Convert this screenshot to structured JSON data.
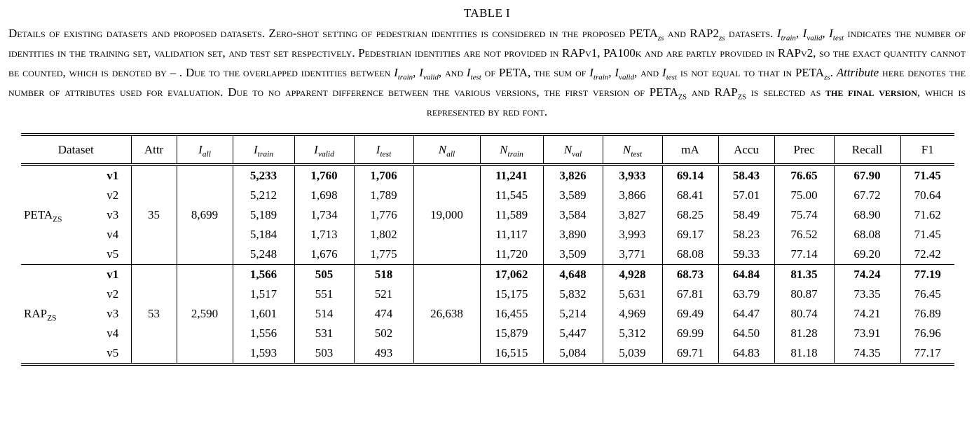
{
  "title": "TABLE I",
  "colors": {
    "text": "#000000",
    "background": "#ffffff",
    "rule": "#000000",
    "final_version_font": "#000000"
  },
  "caption": {
    "segments": [
      {
        "s": "sc",
        "t": "Details of existing datasets and proposed datasets. Zero-shot setting of pedestrian identities is considered in the proposed PETA",
        "sub": "zs",
        "ss": "subi"
      },
      {
        "s": "sc",
        "t": " and RAP2",
        "sub": "zs",
        "ss": "subi"
      },
      {
        "s": "sc",
        "t": " datasets. "
      },
      {
        "s": "mi",
        "t": "I",
        "sub": "train",
        "ss": "subi"
      },
      {
        "s": "sc",
        "t": ", "
      },
      {
        "s": "mi",
        "t": "I",
        "sub": "valid",
        "ss": "subi"
      },
      {
        "s": "sc",
        "t": ", "
      },
      {
        "s": "mi",
        "t": "I",
        "sub": "test",
        "ss": "subi"
      },
      {
        "s": "sc",
        "t": " indicates the number of identities in the training set, validation set, and test set respectively. Pedestrian identities are not provided in RAPv1, PA100k and are partly provided in RAPv2, so the exact quantity cannot be counted, which is denoted by – . Due to the overlapped identities between "
      },
      {
        "s": "mi",
        "t": "I",
        "sub": "train",
        "ss": "subi"
      },
      {
        "s": "sc",
        "t": ", "
      },
      {
        "s": "mi",
        "t": "I",
        "sub": "valid",
        "ss": "subi"
      },
      {
        "s": "sc",
        "t": ", and "
      },
      {
        "s": "mi",
        "t": "I",
        "sub": "test",
        "ss": "subi"
      },
      {
        "s": "sc",
        "t": " of PETA, the sum of "
      },
      {
        "s": "mi",
        "t": "I",
        "sub": "train",
        "ss": "subi"
      },
      {
        "s": "sc",
        "t": ", "
      },
      {
        "s": "mi",
        "t": "I",
        "sub": "valid",
        "ss": "subi"
      },
      {
        "s": "sc",
        "t": ", and "
      },
      {
        "s": "mi",
        "t": "I",
        "sub": "test",
        "ss": "subi"
      },
      {
        "s": "sc",
        "t": " is not equal to that in PETA",
        "sub": "zs",
        "ss": "subi"
      },
      {
        "s": "sc",
        "t": ". "
      },
      {
        "s": "it",
        "t": "Attribute"
      },
      {
        "s": "sc",
        "t": " here denotes the number of attributes used for evaluation. Due to no apparent difference between the various versions, the first version of PETA",
        "sub": "ZS",
        "ss": "subc"
      },
      {
        "s": "sc",
        "t": " and RAP",
        "sub": "ZS",
        "ss": "subc"
      },
      {
        "s": "sc",
        "t": " is selected as "
      },
      {
        "s": "scb",
        "t": "the final version"
      },
      {
        "s": "sc",
        "t": ", which is represented by red font."
      }
    ]
  },
  "table": {
    "columns": [
      {
        "key": "dataset",
        "label": "Dataset",
        "span": 2
      },
      {
        "key": "attr",
        "label": "Attr"
      },
      {
        "key": "i-all",
        "label": "I",
        "sub": "all"
      },
      {
        "key": "i-train",
        "label": "I",
        "sub": "train"
      },
      {
        "key": "i-valid",
        "label": "I",
        "sub": "valid"
      },
      {
        "key": "i-test",
        "label": "I",
        "sub": "test"
      },
      {
        "key": "n-all",
        "label": "N",
        "sub": "all"
      },
      {
        "key": "n-train",
        "label": "N",
        "sub": "train"
      },
      {
        "key": "n-val",
        "label": "N",
        "sub": "val"
      },
      {
        "key": "n-test",
        "label": "N",
        "sub": "test"
      },
      {
        "key": "ma",
        "label": "mA"
      },
      {
        "key": "accu",
        "label": "Accu"
      },
      {
        "key": "prec",
        "label": "Prec"
      },
      {
        "key": "recall",
        "label": "Recall"
      },
      {
        "key": "f1",
        "label": "F1"
      }
    ],
    "groups": [
      {
        "name": "PETA",
        "name_sub": "ZS",
        "attr": "35",
        "i_all": "8,699",
        "n_all": "19,000",
        "rows": [
          {
            "version": "v1",
            "bold": true,
            "i_train": "5,233",
            "i_valid": "1,760",
            "i_test": "1,706",
            "n_train": "11,241",
            "n_val": "3,826",
            "n_test": "3,933",
            "ma": "69.14",
            "accu": "58.43",
            "prec": "76.65",
            "recall": "67.90",
            "f1": "71.45"
          },
          {
            "version": "v2",
            "bold": false,
            "i_train": "5,212",
            "i_valid": "1,698",
            "i_test": "1,789",
            "n_train": "11,545",
            "n_val": "3,589",
            "n_test": "3,866",
            "ma": "68.41",
            "accu": "57.01",
            "prec": "75.00",
            "recall": "67.72",
            "f1": "70.64"
          },
          {
            "version": "v3",
            "bold": false,
            "i_train": "5,189",
            "i_valid": "1,734",
            "i_test": "1,776",
            "n_train": "11,589",
            "n_val": "3,584",
            "n_test": "3,827",
            "ma": "68.25",
            "accu": "58.49",
            "prec": "75.74",
            "recall": "68.90",
            "f1": "71.62"
          },
          {
            "version": "v4",
            "bold": false,
            "i_train": "5,184",
            "i_valid": "1,713",
            "i_test": "1,802",
            "n_train": "11,117",
            "n_val": "3,890",
            "n_test": "3,993",
            "ma": "69.17",
            "accu": "58.23",
            "prec": "76.52",
            "recall": "68.08",
            "f1": "71.45"
          },
          {
            "version": "v5",
            "bold": false,
            "i_train": "5,248",
            "i_valid": "1,676",
            "i_test": "1,775",
            "n_train": "11,720",
            "n_val": "3,509",
            "n_test": "3,771",
            "ma": "68.08",
            "accu": "59.33",
            "prec": "77.14",
            "recall": "69.20",
            "f1": "72.42"
          }
        ]
      },
      {
        "name": "RAP",
        "name_sub": "ZS",
        "attr": "53",
        "i_all": "2,590",
        "n_all": "26,638",
        "rows": [
          {
            "version": "v1",
            "bold": true,
            "i_train": "1,566",
            "i_valid": "505",
            "i_test": "518",
            "n_train": "17,062",
            "n_val": "4,648",
            "n_test": "4,928",
            "ma": "68.73",
            "accu": "64.84",
            "prec": "81.35",
            "recall": "74.24",
            "f1": "77.19"
          },
          {
            "version": "v2",
            "bold": false,
            "i_train": "1,517",
            "i_valid": "551",
            "i_test": "521",
            "n_train": "15,175",
            "n_val": "5,832",
            "n_test": "5,631",
            "ma": "67.81",
            "accu": "63.79",
            "prec": "80.87",
            "recall": "73.35",
            "f1": "76.45"
          },
          {
            "version": "v3",
            "bold": false,
            "i_train": "1,601",
            "i_valid": "514",
            "i_test": "474",
            "n_train": "16,455",
            "n_val": "5,214",
            "n_test": "4,969",
            "ma": "69.49",
            "accu": "64.47",
            "prec": "80.74",
            "recall": "74.21",
            "f1": "76.89"
          },
          {
            "version": "v4",
            "bold": false,
            "i_train": "1,556",
            "i_valid": "531",
            "i_test": "502",
            "n_train": "15,879",
            "n_val": "5,447",
            "n_test": "5,312",
            "ma": "69.99",
            "accu": "64.50",
            "prec": "81.28",
            "recall": "73.91",
            "f1": "76.96"
          },
          {
            "version": "v5",
            "bold": false,
            "i_train": "1,593",
            "i_valid": "503",
            "i_test": "493",
            "n_train": "16,515",
            "n_val": "5,084",
            "n_test": "5,039",
            "ma": "69.71",
            "accu": "64.83",
            "prec": "81.18",
            "recall": "74.35",
            "f1": "77.17"
          }
        ]
      }
    ]
  }
}
